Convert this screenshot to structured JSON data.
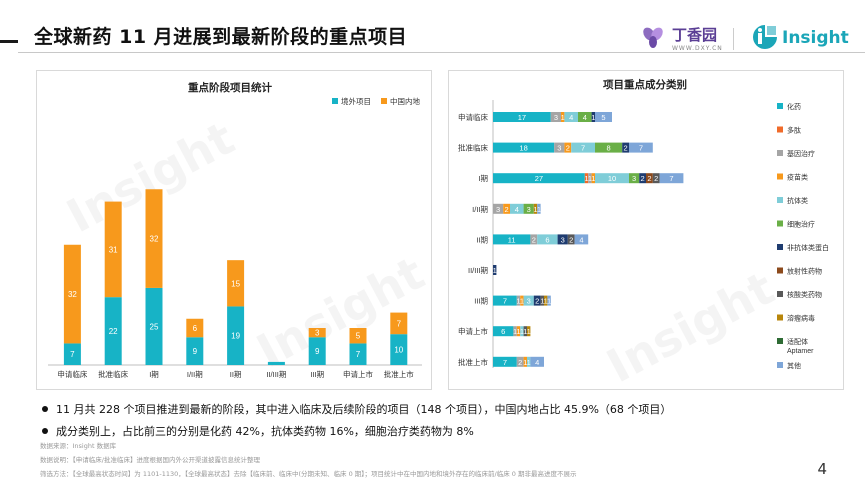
{
  "header": {
    "title": "全球新药 11 月进展到最新阶段的重点项目",
    "brand_dxy": "丁香园",
    "brand_dxy_sub": "WWW.DXY.CN",
    "brand_insight": "Insight"
  },
  "colors": {
    "overseas": "#17b3c6",
    "domestic": "#f7991c"
  },
  "chart_data": [
    {
      "type": "bar",
      "title": "重点阶段项目统计",
      "stacked": true,
      "legend_position": "top-right",
      "categories": [
        "申请临床",
        "批准临床",
        "I期",
        "I/II期",
        "II期",
        "II/III期",
        "III期",
        "申请上市",
        "批准上市"
      ],
      "series": [
        {
          "name": "境外项目",
          "color": "#17b3c6",
          "values": [
            7,
            22,
            25,
            9,
            19,
            1,
            9,
            7,
            10
          ]
        },
        {
          "name": "中国内地",
          "color": "#f7991c",
          "values": [
            32,
            31,
            32,
            6,
            15,
            0,
            3,
            5,
            7
          ]
        }
      ],
      "value_labels": [
        [
          "7",
          "22",
          "25",
          "9",
          "19",
          "",
          "9",
          "7",
          "10"
        ],
        [
          "32",
          "31",
          "32",
          "6",
          "15",
          "",
          "3",
          "5",
          "7"
        ]
      ],
      "ylim": [
        0,
        60
      ]
    },
    {
      "type": "bar",
      "orientation": "horizontal",
      "stacked": true,
      "title": "项目重点成分类别",
      "legend_position": "right",
      "categories": [
        "申请临床",
        "批准临床",
        "I期",
        "I/II期",
        "II期",
        "II/III期",
        "III期",
        "申请上市",
        "批准上市"
      ],
      "series": [
        {
          "name": "化药",
          "color": "#17b3c6",
          "values": [
            17,
            18,
            27,
            0,
            11,
            0,
            7,
            6,
            7
          ]
        },
        {
          "name": "多肽",
          "color": "#f06b2a",
          "values": [
            0,
            0,
            1,
            0,
            0,
            0,
            0,
            0,
            0
          ]
        },
        {
          "name": "基因治疗",
          "color": "#a5a5a5",
          "values": [
            3,
            3,
            1,
            3,
            2,
            0,
            1,
            1,
            2
          ]
        },
        {
          "name": "疫苗类",
          "color": "#f7991c",
          "values": [
            1,
            2,
            1,
            2,
            0,
            0,
            1,
            1,
            1
          ]
        },
        {
          "name": "抗体类",
          "color": "#7fcdd8",
          "values": [
            4,
            7,
            10,
            4,
            6,
            0,
            3,
            1,
            1
          ]
        },
        {
          "name": "细胞治疗",
          "color": "#6aaf47",
          "values": [
            4,
            8,
            3,
            3,
            0,
            0,
            0,
            0,
            0
          ]
        },
        {
          "name": "非抗体类蛋白",
          "color": "#1f3c70",
          "values": [
            1,
            2,
            2,
            0,
            3,
            1,
            2,
            0,
            0
          ]
        },
        {
          "name": "放射性药物",
          "color": "#8c4a1c",
          "values": [
            0,
            0,
            2,
            0,
            0,
            0,
            0,
            0,
            0
          ]
        },
        {
          "name": "核酸类药物",
          "color": "#595959",
          "values": [
            0,
            0,
            2,
            0,
            2,
            0,
            1,
            1,
            0
          ]
        },
        {
          "name": "溶瘤病毒",
          "color": "#b8860b",
          "values": [
            0,
            0,
            0,
            1,
            0,
            0,
            1,
            1,
            0
          ]
        },
        {
          "name": "适配体Aptamer",
          "color": "#2e6b34",
          "values": [
            0,
            0,
            0,
            0,
            0,
            0,
            0,
            0,
            0
          ]
        },
        {
          "name": "其他",
          "color": "#7ea6d8",
          "values": [
            5,
            7,
            7,
            1,
            4,
            0,
            1,
            0,
            4
          ]
        }
      ]
    }
  ],
  "bullets": [
    "11 月共 228 个项目推进到最新的阶段，其中进入临床及后续阶段的项目（148 个项目），中国内地占比 45.9%（68 个项目）",
    "成分类别上，占比前三的分别是化药 42%，抗体类药物 16%，细胞治疗类药物为 8%"
  ],
  "notes": [
    "数据来源：Insight 数据库",
    "数据说明：【申请临床/批准临床】进度根据国内外公开渠道披露信息统计整理",
    "筛选方法：【全球最高状态时间】为 1101-1130，【全球最高状态】去除【临床前、临床中(分期未知、临床 0 期】；项目统计中在中国内地和境外存在的临床前/临床 0 期非最高进度不展示"
  ],
  "page_number": "4",
  "watermark": "Insight"
}
